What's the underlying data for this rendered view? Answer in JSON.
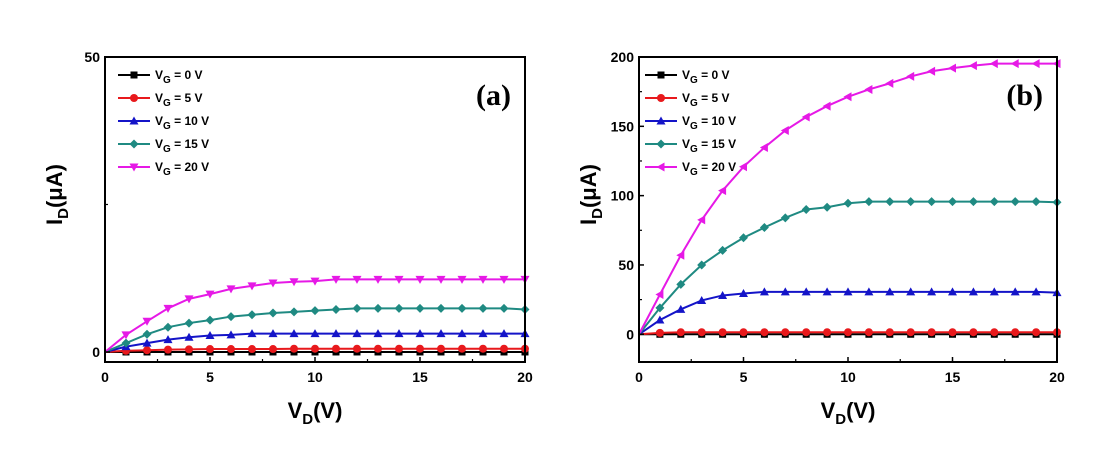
{
  "chart_data": [
    {
      "type": "line",
      "panel_label": "(a)",
      "xlabel": "V",
      "xlabel_sub": "D",
      "xlabel_unit": "(V)",
      "ylabel": "I",
      "ylabel_sub": "D",
      "ylabel_unit": "(μA)",
      "xlim": [
        0,
        20
      ],
      "ylim": [
        -1.7,
        50
      ],
      "xticks": [
        0,
        5,
        10,
        15,
        20
      ],
      "yticks": [
        0,
        50
      ],
      "grid": false,
      "legend": "top-left",
      "x": [
        0,
        1,
        2,
        3,
        4,
        5,
        6,
        7,
        8,
        9,
        10,
        11,
        12,
        13,
        14,
        15,
        16,
        17,
        18,
        19,
        20
      ],
      "series": [
        {
          "name": "V_G = 0 V",
          "label": "V",
          "sub": "G",
          "rest": " = 0 V",
          "color": "#000000",
          "marker": "square",
          "values": [
            0,
            0,
            0,
            0,
            0,
            0,
            0,
            0,
            0,
            0,
            0,
            0,
            0,
            0,
            0,
            0,
            0,
            0,
            0,
            0,
            0
          ]
        },
        {
          "name": "V_G = 5 V",
          "label": "V",
          "sub": "G",
          "rest": " = 5 V",
          "color": "#e8191c",
          "marker": "circle",
          "values": [
            0,
            0.2,
            0.3,
            0.4,
            0.45,
            0.5,
            0.5,
            0.5,
            0.5,
            0.55,
            0.55,
            0.55,
            0.55,
            0.55,
            0.55,
            0.55,
            0.55,
            0.55,
            0.55,
            0.55,
            0.55
          ]
        },
        {
          "name": "V_G = 10 V",
          "label": "V",
          "sub": "G",
          "rest": " = 10 V",
          "color": "#1414c8",
          "marker": "triangle-up",
          "values": [
            0,
            0.9,
            1.5,
            2.1,
            2.5,
            2.8,
            2.9,
            3.1,
            3.1,
            3.1,
            3.1,
            3.1,
            3.1,
            3.1,
            3.1,
            3.1,
            3.1,
            3.1,
            3.1,
            3.1,
            3.1
          ]
        },
        {
          "name": "V_G = 15 V",
          "label": "V",
          "sub": "G",
          "rest": " = 15 V",
          "color": "#1f8a82",
          "marker": "diamond",
          "values": [
            0,
            1.5,
            3.0,
            4.2,
            4.9,
            5.4,
            6.0,
            6.3,
            6.6,
            6.8,
            7.0,
            7.2,
            7.4,
            7.4,
            7.4,
            7.4,
            7.4,
            7.4,
            7.4,
            7.4,
            7.2
          ]
        },
        {
          "name": "V_G = 20 V",
          "label": "V",
          "sub": "G",
          "rest": " = 20 V",
          "color": "#e619e6",
          "marker": "triangle-down",
          "values": [
            0,
            2.9,
            5.2,
            7.4,
            9.0,
            9.8,
            10.7,
            11.2,
            11.7,
            11.9,
            12.0,
            12.3,
            12.3,
            12.3,
            12.3,
            12.3,
            12.3,
            12.3,
            12.3,
            12.3,
            12.3
          ]
        }
      ]
    },
    {
      "type": "line",
      "panel_label": "(b)",
      "xlabel": "V",
      "xlabel_sub": "D",
      "xlabel_unit": "(V)",
      "ylabel": "I",
      "ylabel_sub": "D",
      "ylabel_unit": "(μA)",
      "xlim": [
        0,
        20
      ],
      "ylim": [
        -20,
        200
      ],
      "xticks": [
        0,
        5,
        10,
        15,
        20
      ],
      "yticks": [
        0,
        50,
        100,
        150,
        200
      ],
      "grid": false,
      "legend": "top-left",
      "x": [
        0,
        1,
        2,
        3,
        4,
        5,
        6,
        7,
        8,
        9,
        10,
        11,
        12,
        13,
        14,
        15,
        16,
        17,
        18,
        19,
        20
      ],
      "series": [
        {
          "name": "V_G = 0 V",
          "label": "V",
          "sub": "G",
          "rest": " = 0 V",
          "color": "#000000",
          "marker": "square",
          "values": [
            0,
            0,
            0,
            0,
            0,
            0,
            0,
            0,
            0,
            0,
            0,
            0,
            0,
            0,
            0,
            0,
            0,
            0,
            0,
            0,
            0
          ]
        },
        {
          "name": "V_G = 5 V",
          "label": "V",
          "sub": "G",
          "rest": " = 5 V",
          "color": "#e8191c",
          "marker": "circle",
          "values": [
            0,
            1,
            1.5,
            1.5,
            1.5,
            1.5,
            1.5,
            1.5,
            1.5,
            1.5,
            1.5,
            1.5,
            1.5,
            1.5,
            1.5,
            1.5,
            1.5,
            1.5,
            1.5,
            1.5,
            1.5
          ]
        },
        {
          "name": "V_G = 10 V",
          "label": "V",
          "sub": "G",
          "rest": " = 10 V",
          "color": "#1414c8",
          "marker": "triangle-up",
          "values": [
            0,
            10.3,
            18,
            24.4,
            28,
            29.4,
            30.6,
            30.6,
            30.6,
            30.6,
            30.6,
            30.6,
            30.6,
            30.6,
            30.6,
            30.6,
            30.6,
            30.6,
            30.6,
            30.6,
            30
          ]
        },
        {
          "name": "V_G = 15 V",
          "label": "V",
          "sub": "G",
          "rest": " = 15 V",
          "color": "#1f8a82",
          "marker": "diamond",
          "values": [
            0,
            19,
            36,
            50,
            60.5,
            69.6,
            77,
            84,
            90,
            91.6,
            94.5,
            95.7,
            95.7,
            95.7,
            95.7,
            95.7,
            95.7,
            95.7,
            95.7,
            95.7,
            95.2
          ]
        },
        {
          "name": "V_G = 20 V",
          "label": "V",
          "sub": "G",
          "rest": " = 20 V",
          "color": "#e619e6",
          "marker": "triangle-left",
          "values": [
            0,
            28.7,
            57,
            82.5,
            103.6,
            120.8,
            134.7,
            147,
            156.7,
            164.6,
            171.3,
            176.6,
            181,
            186,
            189.7,
            192,
            193.8,
            195.2,
            195.2,
            195.2,
            195.2
          ]
        }
      ]
    }
  ]
}
